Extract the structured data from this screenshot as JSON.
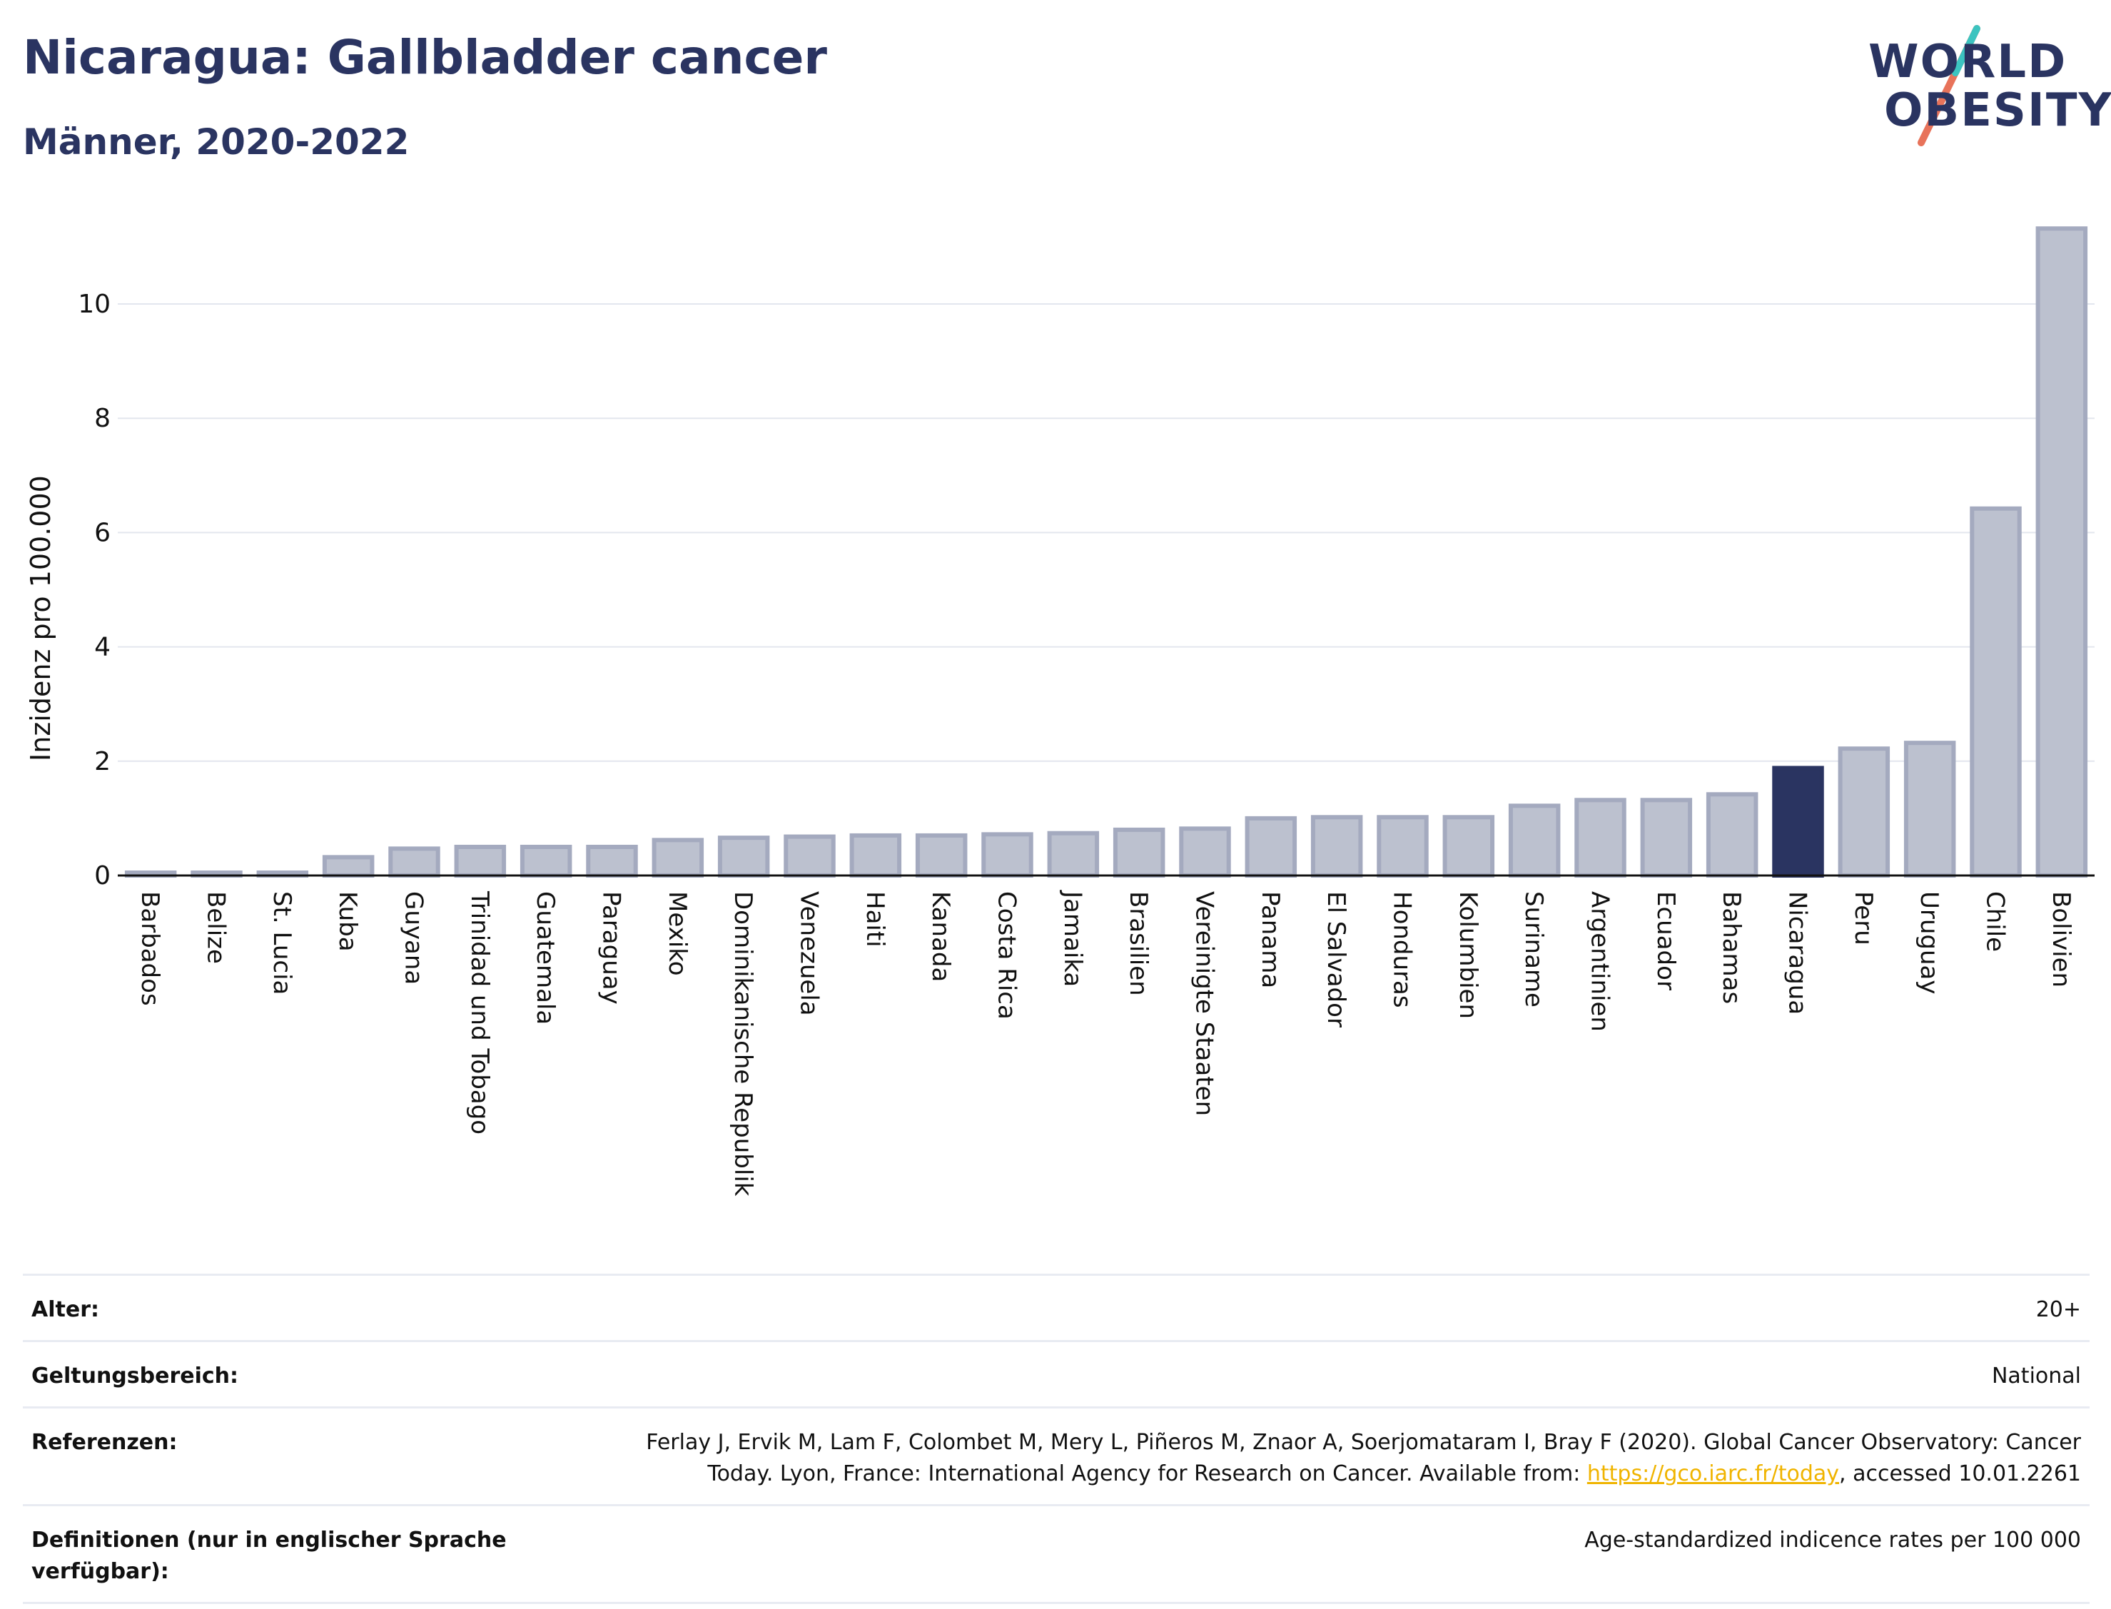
{
  "header": {
    "title": "Nicaragua: Gallbladder cancer",
    "subtitle": "Männer, 2020-2022"
  },
  "logo": {
    "line1": "WORLD",
    "line2": "OBESITY"
  },
  "chart_data": {
    "type": "bar",
    "title": "Nicaragua: Gallbladder cancer",
    "subtitle": "Männer, 2020-2022",
    "ylabel": "Inzidenz pro 100.000",
    "xlabel": "",
    "ylim": [
      0,
      11.5
    ],
    "yticks": [
      0,
      2,
      4,
      6,
      8,
      10
    ],
    "grid": true,
    "highlight": "Nicaragua",
    "colors": {
      "bar": "#bcc1cf",
      "bar_stroke": "#a4aabf",
      "highlight": "#2a3461"
    },
    "categories": [
      "Barbados",
      "Belize",
      "St. Lucia",
      "Kuba",
      "Guyana",
      "Trinidad und Tobago",
      "Guatemala",
      "Paraguay",
      "Mexiko",
      "Dominikanische Republik",
      "Venezuela",
      "Haiti",
      "Kanada",
      "Costa Rica",
      "Jamaika",
      "Brasilien",
      "Vereinigte Staaten",
      "Panama",
      "El Salvador",
      "Honduras",
      "Kolumbien",
      "Suriname",
      "Argentinien",
      "Ecuador",
      "Bahamas",
      "Nicaragua",
      "Peru",
      "Uruguay",
      "Chile",
      "Bolivien"
    ],
    "values": [
      0.05,
      0.05,
      0.05,
      0.32,
      0.47,
      0.5,
      0.5,
      0.5,
      0.62,
      0.66,
      0.68,
      0.7,
      0.7,
      0.72,
      0.74,
      0.8,
      0.82,
      1.0,
      1.02,
      1.02,
      1.02,
      1.22,
      1.32,
      1.32,
      1.42,
      1.88,
      2.22,
      2.32,
      6.42,
      11.32
    ]
  },
  "meta": {
    "age_label": "Alter:",
    "age_value": "20+",
    "scope_label": "Geltungsbereich:",
    "scope_value": "National",
    "refs_label": "Referenzen:",
    "refs_text1": "Ferlay J, Ervik M, Lam F, Colombet M, Mery L, Piñeros M, Znaor A, Soerjomataram I, Bray F (2020). Global Cancer Observatory: Cancer",
    "refs_text2": "Today. Lyon, France: International Agency for Research on Cancer. Available from: ",
    "refs_link": "https://gco.iarc.fr/today",
    "refs_text3": ", accessed 10.01.2261",
    "def_label": "Definitionen (nur in englischer Sprache verfügbar):",
    "def_value": "Age-standardized indicence rates per 100 000"
  }
}
